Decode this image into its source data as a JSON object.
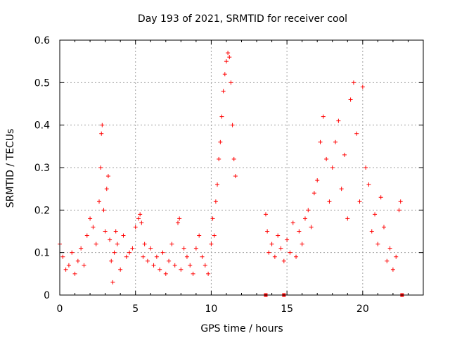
{
  "chart_data": {
    "type": "scatter",
    "title": "Day 193 of 2021, SRMTID for receiver cool",
    "xlabel": "GPS time / hours",
    "ylabel": "SRMTID / TECUs",
    "xlim": [
      0,
      24
    ],
    "ylim": [
      0,
      0.6
    ],
    "xticks": [
      0,
      5,
      10,
      15,
      20
    ],
    "yticks": [
      0,
      0.1,
      0.2,
      0.3,
      0.4,
      0.5,
      0.6
    ],
    "grid": true,
    "marker": "plus",
    "series_color": "#ff0000",
    "series": [
      {
        "name": "SRMTID",
        "x": [
          0.0,
          0.2,
          0.4,
          0.6,
          0.8,
          1.0,
          1.2,
          1.4,
          1.6,
          1.8,
          2.0,
          2.2,
          2.4,
          2.6,
          2.7,
          2.75,
          2.8,
          2.9,
          3.0,
          3.1,
          3.2,
          3.3,
          3.4,
          3.5,
          3.6,
          3.7,
          3.8,
          4.0,
          4.2,
          4.4,
          4.6,
          4.8,
          5.0,
          5.2,
          5.3,
          5.4,
          5.5,
          5.6,
          5.8,
          6.0,
          6.2,
          6.4,
          6.6,
          6.8,
          7.0,
          7.2,
          7.4,
          7.6,
          7.8,
          7.9,
          8.0,
          8.2,
          8.4,
          8.6,
          8.8,
          9.0,
          9.2,
          9.4,
          9.6,
          9.8,
          10.0,
          10.1,
          10.2,
          10.3,
          10.4,
          10.5,
          10.6,
          10.7,
          10.8,
          10.9,
          11.0,
          11.1,
          11.2,
          11.3,
          11.4,
          11.5,
          11.6,
          13.6,
          13.7,
          13.8,
          14.0,
          14.2,
          14.4,
          14.6,
          14.8,
          15.0,
          15.2,
          15.4,
          15.6,
          15.8,
          16.0,
          16.2,
          16.4,
          16.6,
          16.8,
          17.0,
          17.2,
          17.4,
          17.6,
          17.8,
          18.0,
          18.2,
          18.4,
          18.6,
          18.8,
          19.0,
          19.2,
          19.4,
          19.6,
          19.8,
          20.0,
          20.2,
          20.4,
          20.6,
          20.8,
          21.0,
          21.2,
          21.4,
          21.6,
          21.8,
          22.0,
          22.2,
          22.4,
          22.5
        ],
        "y": [
          0.12,
          0.09,
          0.06,
          0.07,
          0.1,
          0.05,
          0.08,
          0.11,
          0.07,
          0.14,
          0.18,
          0.16,
          0.12,
          0.22,
          0.3,
          0.38,
          0.4,
          0.2,
          0.15,
          0.25,
          0.28,
          0.13,
          0.08,
          0.03,
          0.1,
          0.15,
          0.12,
          0.06,
          0.14,
          0.09,
          0.1,
          0.11,
          0.16,
          0.18,
          0.19,
          0.17,
          0.09,
          0.12,
          0.08,
          0.11,
          0.07,
          0.09,
          0.06,
          0.1,
          0.05,
          0.08,
          0.12,
          0.07,
          0.17,
          0.18,
          0.06,
          0.11,
          0.09,
          0.07,
          0.05,
          0.11,
          0.14,
          0.09,
          0.07,
          0.05,
          0.12,
          0.18,
          0.14,
          0.22,
          0.26,
          0.32,
          0.36,
          0.42,
          0.48,
          0.52,
          0.55,
          0.57,
          0.56,
          0.5,
          0.4,
          0.32,
          0.28,
          0.19,
          0.15,
          0.1,
          0.12,
          0.09,
          0.14,
          0.11,
          0.08,
          0.13,
          0.1,
          0.17,
          0.09,
          0.15,
          0.12,
          0.18,
          0.2,
          0.16,
          0.24,
          0.27,
          0.36,
          0.42,
          0.32,
          0.22,
          0.3,
          0.36,
          0.41,
          0.25,
          0.33,
          0.18,
          0.46,
          0.5,
          0.38,
          0.22,
          0.49,
          0.3,
          0.26,
          0.15,
          0.19,
          0.12,
          0.23,
          0.16,
          0.08,
          0.11,
          0.06,
          0.09,
          0.2,
          0.22
        ],
        "zero_marks_x": [
          13.6,
          14.8,
          22.6
        ]
      }
    ]
  }
}
